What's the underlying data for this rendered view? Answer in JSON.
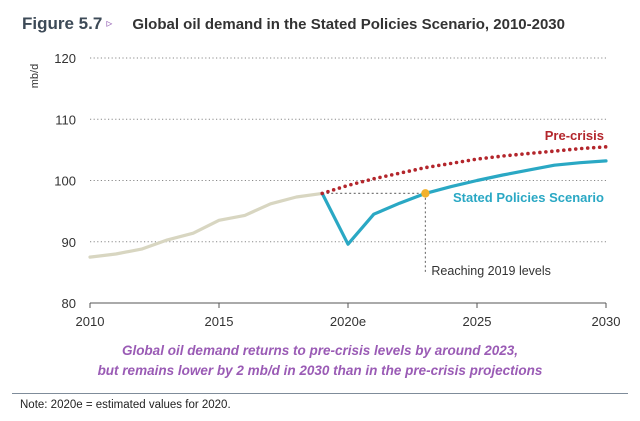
{
  "header": {
    "figure_label": "Figure 5.7",
    "arrow": "▹",
    "title": "Global oil demand in the Stated Policies Scenario, 2010-2030"
  },
  "chart_data": {
    "type": "line",
    "ylabel": "mb/d",
    "xlim": [
      2010,
      2030
    ],
    "ylim": [
      80,
      120
    ],
    "yticks": [
      80,
      90,
      100,
      110,
      120
    ],
    "xticks": [
      2010,
      2015,
      2020,
      2025,
      2030
    ],
    "xtick_labels": [
      "2010",
      "2015",
      "2020e",
      "2025",
      "2030"
    ],
    "grid": "horizontal dotted",
    "series": [
      {
        "name": "",
        "color": "#d8d6c1",
        "style": "solid",
        "points": [
          [
            2010,
            87.5
          ],
          [
            2011,
            88.0
          ],
          [
            2012,
            88.8
          ],
          [
            2013,
            90.3
          ],
          [
            2014,
            91.4
          ],
          [
            2015,
            93.5
          ],
          [
            2016,
            94.3
          ],
          [
            2017,
            96.2
          ],
          [
            2018,
            97.3
          ],
          [
            2019,
            97.9
          ]
        ]
      },
      {
        "name": "Stated Policies Scenario",
        "color": "#2aa8c4",
        "style": "solid",
        "points": [
          [
            2019,
            97.9
          ],
          [
            2020,
            89.6
          ],
          [
            2021,
            94.5
          ],
          [
            2022,
            96.3
          ],
          [
            2023,
            97.9
          ],
          [
            2024,
            99.0
          ],
          [
            2025,
            100.0
          ],
          [
            2026,
            100.9
          ],
          [
            2027,
            101.7
          ],
          [
            2028,
            102.5
          ],
          [
            2029,
            102.9
          ],
          [
            2030,
            103.2
          ]
        ]
      },
      {
        "name": "Pre-crisis",
        "color": "#b3262c",
        "style": "dotted",
        "points": [
          [
            2019,
            97.9
          ],
          [
            2020,
            99.2
          ],
          [
            2021,
            100.3
          ],
          [
            2022,
            101.2
          ],
          [
            2023,
            102.1
          ],
          [
            2024,
            102.8
          ],
          [
            2025,
            103.5
          ],
          [
            2026,
            104.0
          ],
          [
            2027,
            104.4
          ],
          [
            2028,
            104.8
          ],
          [
            2029,
            105.2
          ],
          [
            2030,
            105.5
          ]
        ]
      }
    ],
    "marker": {
      "x": 2023,
      "y": 97.9,
      "color": "#f2b12c"
    },
    "annotations": {
      "precrisis_label": "Pre-crisis",
      "steps_label": "Stated Policies Scenario",
      "reaching_label": "Reaching 2019 levels"
    }
  },
  "caption": {
    "line1": "Global oil demand returns to pre-crisis levels by around 2023,",
    "line2": "but remains lower by 2 mb/d in 2030 than in the pre-crisis projections"
  },
  "note": "Note: 2020e = estimated values for 2020."
}
